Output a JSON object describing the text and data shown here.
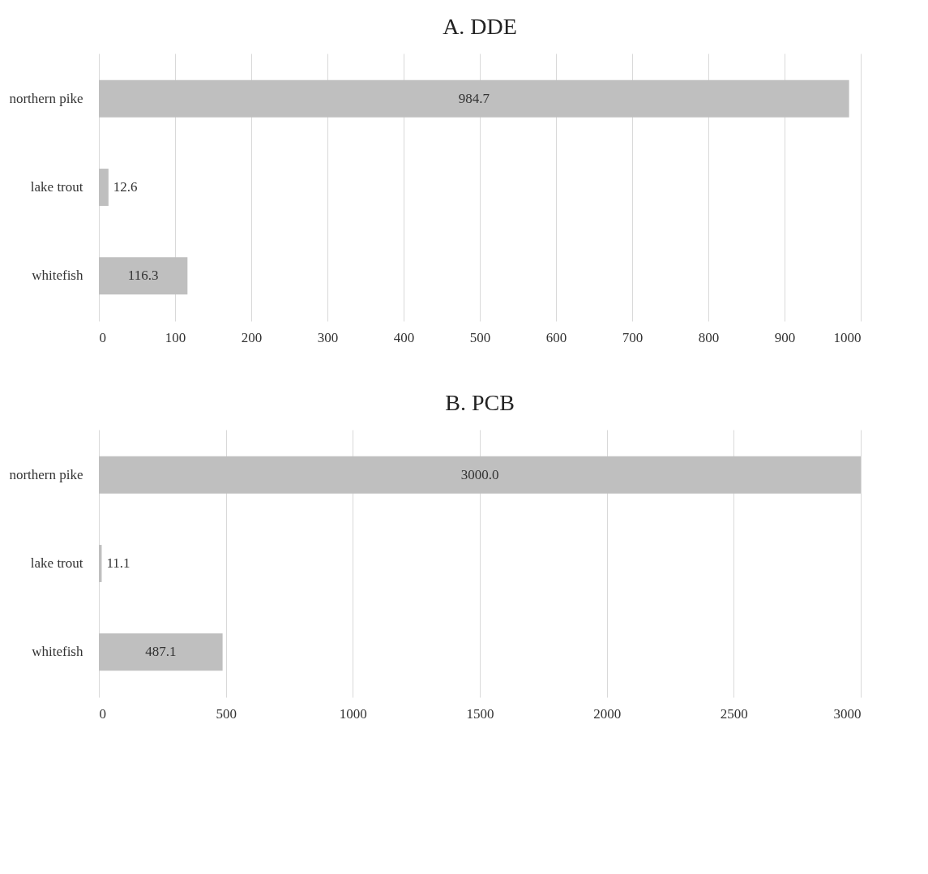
{
  "chart_data": [
    {
      "type": "bar",
      "orientation": "horizontal",
      "title": "A. DDE",
      "categories": [
        "northern pike",
        "lake trout",
        "whitefish"
      ],
      "values": [
        984.7,
        12.6,
        116.3
      ],
      "color": "#bfbfbf",
      "xlim": [
        0,
        1000
      ],
      "xticks": [
        0,
        100,
        200,
        300,
        400,
        500,
        600,
        700,
        800,
        900,
        1000
      ],
      "grid": "x",
      "value_labels": [
        "984.7",
        "12.6",
        "116.3"
      ]
    },
    {
      "type": "bar",
      "orientation": "horizontal",
      "title": "B. PCB",
      "categories": [
        "northern pike",
        "lake trout",
        "whitefish"
      ],
      "values": [
        3000.0,
        11.1,
        487.1
      ],
      "color": "#bfbfbf",
      "xlim": [
        0,
        3000
      ],
      "xticks": [
        0,
        500,
        1000,
        1500,
        2000,
        2500,
        3000
      ],
      "grid": "x",
      "value_labels": [
        "3000.0",
        "11.1",
        "487.1"
      ]
    }
  ]
}
